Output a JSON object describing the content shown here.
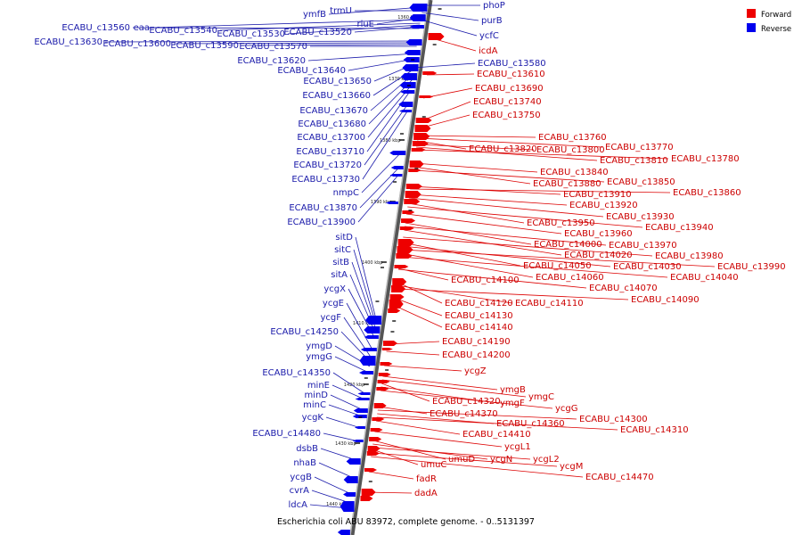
{
  "caption": "Escherichia coli ABU 83972, complete genome. - 0..5131397",
  "legend": [
    {
      "label": "Forward",
      "color": "#ee0000"
    },
    {
      "label": "Reverse",
      "color": "#0000ee"
    }
  ],
  "ticks": [
    "1360 kbp",
    "1370 kbp",
    "1380 kbp",
    "1390 kbp",
    "1400 kbp",
    "1410 kbp",
    "1420 kbp",
    "1430 kbp",
    "1440 kbp"
  ],
  "reverse_genes": [
    "ymfB",
    "trmU",
    "rluE",
    "eaa",
    "ECABU_c13540",
    "ECABU_c13530",
    "ECABU_c13520",
    "ECABU_c13560",
    "ECABU_c13630",
    "ECABU_c13600",
    "ECABU_c13590",
    "ECABU_c13570",
    "ECABU_c13620",
    "ECABU_c13640",
    "ECABU_c13650",
    "ECABU_c13660",
    "ECABU_c13670",
    "ECABU_c13680",
    "ECABU_c13700",
    "ECABU_c13710",
    "ECABU_c13720",
    "ECABU_c13730",
    "nmpC",
    "ECABU_c13870",
    "ECABU_c13900",
    "sitD",
    "sitC",
    "sitB",
    "sitA",
    "ycgX",
    "ycgE",
    "ycgF",
    "ECABU_c14250",
    "ymgD",
    "ymgG",
    "ECABU_c14350",
    "minE",
    "minD",
    "minC",
    "ycgK",
    "ECABU_c14480",
    "dsbB",
    "nhaB",
    "ycgB",
    "cvrA",
    "ldcA",
    "phoP",
    "purB",
    "ycfC",
    "ECABU_c13580"
  ],
  "forward_genes": [
    "icdA",
    "ECABU_c13610",
    "ECABU_c13690",
    "ECABU_c13740",
    "ECABU_c13750",
    "ECABU_c13760",
    "ECABU_c13770",
    "ECABU_c13820",
    "ECABU_c13800",
    "ECABU_c13810",
    "ECABU_c13780",
    "ECABU_c13840",
    "ECABU_c13880",
    "ECABU_c13850",
    "ECABU_c13910",
    "ECABU_c13860",
    "ECABU_c13920",
    "ECABU_c13930",
    "ECABU_c13950",
    "ECABU_c13940",
    "ECABU_c13960",
    "ECABU_c14000",
    "ECABU_c13970",
    "ECABU_c14020",
    "ECABU_c13980",
    "ECABU_c14050",
    "ECABU_c14030",
    "ECABU_c13990",
    "ECABU_c14060",
    "ECABU_c14040",
    "ECABU_c14100",
    "ECABU_c14070",
    "ECABU_c14120",
    "ECABU_c14110",
    "ECABU_c14090",
    "ECABU_c14130",
    "ECABU_c14140",
    "ECABU_c14190",
    "ECABU_c14200",
    "ycgZ",
    "ymgB",
    "ymgC",
    "ECABU_c14320",
    "ymgF",
    "ycgG",
    "ECABU_c14370",
    "ECABU_c14300",
    "ECABU_c14360",
    "ECABU_c14310",
    "ECABU_c14410",
    "ycgL1",
    "umuD",
    "ycgN",
    "ycgL2",
    "umuC",
    "ycgM",
    "ECABU_c14470",
    "fadR",
    "dadA"
  ]
}
